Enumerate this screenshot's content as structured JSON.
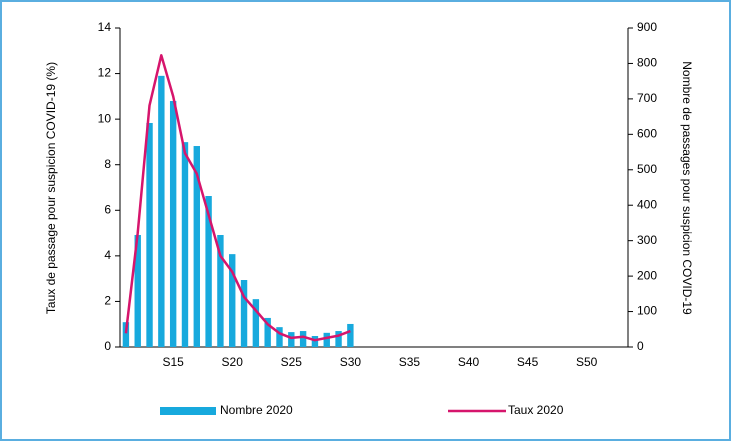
{
  "chart_data": {
    "type": "bar_line",
    "ylabel": "Taux de passage pour suspicion COVID-19 (%)",
    "y2label": "Nombre de passages pour suspicion COVID-19",
    "categories": [
      null,
      null,
      null,
      null,
      "S15",
      null,
      null,
      null,
      null,
      "S20",
      null,
      null,
      null,
      null,
      "S25",
      null,
      null,
      null,
      null,
      "S30",
      null,
      null,
      null,
      null,
      "S35",
      null,
      null,
      null,
      null,
      "S40",
      null,
      null,
      null,
      null,
      "S45",
      null,
      null,
      null,
      null,
      "S50",
      null,
      null,
      null
    ],
    "series": [
      {
        "name": "Nombre 2020",
        "type": "bar",
        "axis": "y2",
        "color": "#17a9dd",
        "values": [
          70,
          316,
          632,
          765,
          694,
          578,
          567,
          426,
          316,
          262,
          189,
          135,
          82,
          56,
          42,
          45,
          31,
          40,
          45,
          65,
          null,
          null,
          null,
          null,
          null,
          null,
          null,
          null,
          null,
          null,
          null,
          null,
          null,
          null,
          null,
          null,
          null,
          null,
          null,
          null,
          null,
          null,
          null
        ]
      },
      {
        "name": "Taux 2020",
        "type": "line",
        "axis": "y",
        "color": "#d6156c",
        "values": [
          0.6,
          5.0,
          10.6,
          12.8,
          11.0,
          8.5,
          7.6,
          5.8,
          4.0,
          3.3,
          2.2,
          1.6,
          1.0,
          0.6,
          0.4,
          0.45,
          0.3,
          0.4,
          0.5,
          0.7,
          null,
          null,
          null,
          null,
          null,
          null,
          null,
          null,
          null,
          null,
          null,
          null,
          null,
          null,
          null,
          null,
          null,
          null,
          null,
          null,
          null,
          null,
          null
        ]
      }
    ],
    "ylim": [
      0,
      14
    ],
    "yticks": [
      0,
      2,
      4,
      6,
      8,
      10,
      12,
      14
    ],
    "y2lim": [
      0,
      900
    ],
    "y2ticks": [
      0,
      100,
      200,
      300,
      400,
      500,
      600,
      700,
      800,
      900
    ]
  }
}
